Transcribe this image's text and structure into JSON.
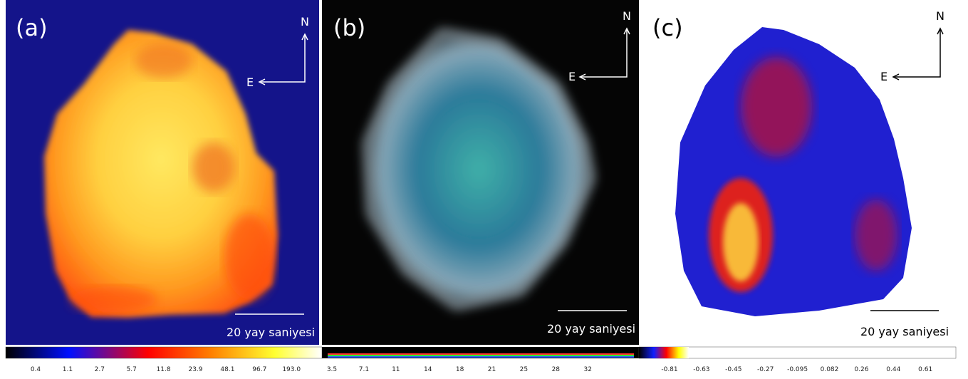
{
  "panels": [
    {
      "label": "(a)",
      "north": "N",
      "east": "E",
      "scale_bar": "20 yay saniyesi"
    },
    {
      "label": "(b)",
      "north": "N",
      "east": "E",
      "scale_bar": "20 yay saniyesi"
    },
    {
      "label": "(c)",
      "north": "N",
      "east": "E",
      "scale_bar": "20 yay saniyesi"
    }
  ],
  "colorbars": [
    {
      "ticks": [
        "0.4",
        "1.1",
        "2.7",
        "5.7",
        "11.8",
        "23.9",
        "48.1",
        "96.7",
        "193.0"
      ]
    },
    {
      "ticks": [
        "3.5",
        "7.1",
        "11",
        "14",
        "18",
        "21",
        "25",
        "28",
        "32"
      ]
    },
    {
      "ticks": [
        "-0.81",
        "-0.63",
        "-0.45",
        "-0.27",
        "-0.095",
        "0.082",
        "0.26",
        "0.44",
        "0.61"
      ]
    }
  ]
}
